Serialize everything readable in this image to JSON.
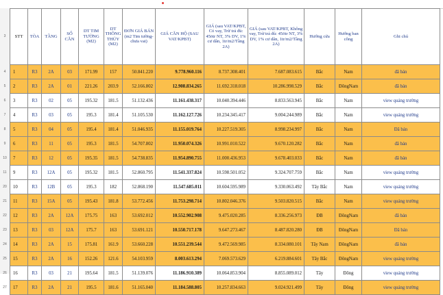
{
  "headers": {
    "stt": "STT",
    "toa": "TÒA",
    "tang": "TẦNG",
    "socan": "SỐ CĂN",
    "dt_tim": "DT TIM TƯỜNG (M2)",
    "dt_thong": "DT THÔNG THỦY (M2)",
    "don_gia": "ĐƠN GIÁ BÁN (m2 Tim tường- chưa vat)",
    "gia_can": "GIÁ CĂN HỘ (SAU VAT/KPBT)",
    "gia_co_vay": "GIÁ (sau VAT/KPBT, Có vay, Trừ trả đủ: 45ötr NT, 3% DV, 1% cư dân, 1tr/m2/Tầng 2A)",
    "gia_khong_vay": "GIÁ (sau VAT/KPBT, Không vay, Trừ trả đủ: 45ötr NT, 3% DV, 1% cư dân, 1tr/m2/Tầng 2A)",
    "huong_cua": "Hướng cửa",
    "huong_ban_cong": "Hướng ban công",
    "ghi_chu": "Ghi chú"
  },
  "row_numbers": [
    "3",
    "4",
    "5",
    "6",
    "7",
    "8",
    "9",
    "10",
    "11",
    "20",
    "21",
    "22",
    "23",
    "24",
    "25",
    "26",
    "27"
  ],
  "rows": [
    {
      "stt": "1",
      "toa": "R3",
      "tang": "2A",
      "socan": "03",
      "dt_tim": "171.99",
      "dt_thong": "157",
      "don_gia": "50.841.220",
      "gia_can": "9.778.960.116",
      "gia_co_vay": "8.737.308.401",
      "gia_khong_vay": "7.687.083.615",
      "huong_cua": "Bắc",
      "huong_ban_cong": "Nam",
      "ghi_chu": "đã bán"
    },
    {
      "stt": "2",
      "toa": "R3",
      "tang": "2A",
      "socan": "01",
      "dt_tim": "221.26",
      "dt_thong": "203.9",
      "don_gia": "52.166.802",
      "gia_can": "12.908.834.265",
      "gia_co_vay": "11.692.318.018",
      "gia_khong_vay": "10.286.998.529",
      "huong_cua": "Bắc",
      "huong_ban_cong": "ĐôngNam",
      "ghi_chu": "đã bán"
    },
    {
      "stt": "3",
      "toa": "R3",
      "tang": "02",
      "socan": "05",
      "dt_tim": "195.32",
      "dt_thong": "181.5",
      "don_gia": "51.132.436",
      "gia_can": "11.161.438.317",
      "gia_co_vay": "10.040.394.446",
      "gia_khong_vay": "8.833.563.945",
      "huong_cua": "Bắc",
      "huong_ban_cong": "Nam",
      "ghi_chu": "view quảng trường"
    },
    {
      "stt": "4",
      "toa": "R3",
      "tang": "03",
      "socan": "05",
      "dt_tim": "195.3",
      "dt_thong": "181.4",
      "don_gia": "51.105.530",
      "gia_can": "11.162.127.726",
      "gia_co_vay": "10.234.345.417",
      "gia_khong_vay": "9.004.244.989",
      "huong_cua": "Bắc",
      "huong_ban_cong": "Nam",
      "ghi_chu": "view quảng trường"
    },
    {
      "stt": "5",
      "toa": "R3",
      "tang": "04",
      "socan": "05",
      "dt_tim": "195.4",
      "dt_thong": "181.4",
      "don_gia": "51.046.935",
      "gia_can": "11.155.019.764",
      "gia_co_vay": "10.227.519.305",
      "gia_khong_vay": "8.998.234.997",
      "huong_cua": "Bắc",
      "huong_ban_cong": "Nam",
      "ghi_chu": "Đã bán"
    },
    {
      "stt": "6",
      "toa": "R3",
      "tang": "11",
      "socan": "05",
      "dt_tim": "195.3",
      "dt_thong": "181.5",
      "don_gia": "54.707.802",
      "gia_can": "11.950.074.326",
      "gia_co_vay": "10.991.010.522",
      "gia_khong_vay": "9.670.120.282",
      "huong_cua": "Bắc",
      "huong_ban_cong": "Nam",
      "ghi_chu": "đã bán"
    },
    {
      "stt": "7",
      "toa": "R3",
      "tang": "12",
      "socan": "05",
      "dt_tim": "195.35",
      "dt_thong": "181.5",
      "don_gia": "54.738.835",
      "gia_can": "11.954.890.755",
      "gia_co_vay": "11.000.436.953",
      "gia_khong_vay": "9.678.403.033",
      "huong_cua": "Bắc",
      "huong_ban_cong": "Nam",
      "ghi_chu": "đã bán"
    },
    {
      "stt": "9",
      "toa": "R3",
      "tang": "12A",
      "socan": "05",
      "dt_tim": "195.32",
      "dt_thong": "181.5",
      "don_gia": "52.860.795",
      "gia_can": "11.541.337.824",
      "gia_co_vay": "10.598.501.052",
      "gia_khong_vay": "9.324.707.759",
      "huong_cua": "Bắc",
      "huong_ban_cong": "Nam",
      "ghi_chu": "view quảng trường"
    },
    {
      "stt": "10",
      "toa": "R3",
      "tang": "12B",
      "socan": "05",
      "dt_tim": "195.3",
      "dt_thong": "182",
      "don_gia": "52.868.190",
      "gia_can": "11.547.685.011",
      "gia_co_vay": "10.604.595.989",
      "gia_khong_vay": "9.330.063.492",
      "huong_cua": "Tây Bắc",
      "huong_ban_cong": "Nam",
      "ghi_chu": "view quảng trường"
    },
    {
      "stt": "11",
      "toa": "R3",
      "tang": "15A",
      "socan": "05",
      "dt_tim": "195.43",
      "dt_thong": "181.8",
      "don_gia": "53.772.456",
      "gia_can": "11.753.298.714",
      "gia_co_vay": "10.802.046.376",
      "gia_khong_vay": "9.503.820.515",
      "huong_cua": "Bắc",
      "huong_ban_cong": "Nam",
      "ghi_chu": "view quảng trường"
    },
    {
      "stt": "12",
      "toa": "R3",
      "tang": "2A",
      "socan": "12A",
      "dt_tim": "175.75",
      "dt_thong": "163",
      "don_gia": "53.692.012",
      "gia_can": "10.552.902.908",
      "gia_co_vay": "9.475.020.285",
      "gia_khong_vay": "8.336.256.973",
      "huong_cua": "ĐB",
      "huong_ban_cong": "ĐôngNam",
      "ghi_chu": "đã bán"
    },
    {
      "stt": "13",
      "toa": "R3",
      "tang": "03",
      "socan": "12A",
      "dt_tim": "175.7",
      "dt_thong": "163",
      "don_gia": "53.691.121",
      "gia_can": "10.550.717.178",
      "gia_co_vay": "9.647.273.467",
      "gia_khong_vay": "8.487.820.280",
      "huong_cua": "ĐB",
      "huong_ban_cong": "ĐôngNam",
      "ghi_chu": "Đã bán"
    },
    {
      "stt": "14",
      "toa": "R3",
      "tang": "2A",
      "socan": "15",
      "dt_tim": "175.81",
      "dt_thong": "161.9",
      "don_gia": "53.660.228",
      "gia_can": "10.551.239.544",
      "gia_co_vay": "9.472.569.985",
      "gia_khong_vay": "8.334.080.101",
      "huong_cua": "Tây Nam",
      "huong_ban_cong": "ĐôngNam",
      "ghi_chu": "đã bán"
    },
    {
      "stt": "15",
      "toa": "R3",
      "tang": "2A",
      "socan": "16",
      "dt_tim": "152.26",
      "dt_thong": "121.6",
      "don_gia": "54.103.959",
      "gia_can": "8.003.613.294",
      "gia_co_vay": "7.069.573.629",
      "gia_khong_vay": "6.219.884.601",
      "huong_cua": "Tây Bắc",
      "huong_ban_cong": "ĐôngNam",
      "ghi_chu": "view quảng trường"
    },
    {
      "stt": "16",
      "toa": "R3",
      "tang": "03",
      "socan": "21",
      "dt_tim": "195.64",
      "dt_thong": "181.5",
      "don_gia": "51.139.076",
      "gia_can": "11.186.910.389",
      "gia_co_vay": "10.064.853.904",
      "gia_khong_vay": "8.855.089.012",
      "huong_cua": "Tây",
      "huong_ban_cong": "Đông",
      "ghi_chu": "view quảng trường"
    },
    {
      "stt": "17",
      "toa": "R3",
      "tang": "2A",
      "socan": "21",
      "dt_tim": "195.5",
      "dt_thong": "181.6",
      "don_gia": "51.165.040",
      "gia_can": "11.184.588.805",
      "gia_co_vay": "10.257.834.663",
      "gia_khong_vay": "9.024.921.499",
      "huong_cua": "Tây",
      "huong_ban_cong": "Đông",
      "ghi_chu": "view quảng trường"
    }
  ],
  "colors": {
    "highlight": "#fbbf4b",
    "header_text": "#1f3a8a",
    "grid": "#8a8a8a"
  }
}
